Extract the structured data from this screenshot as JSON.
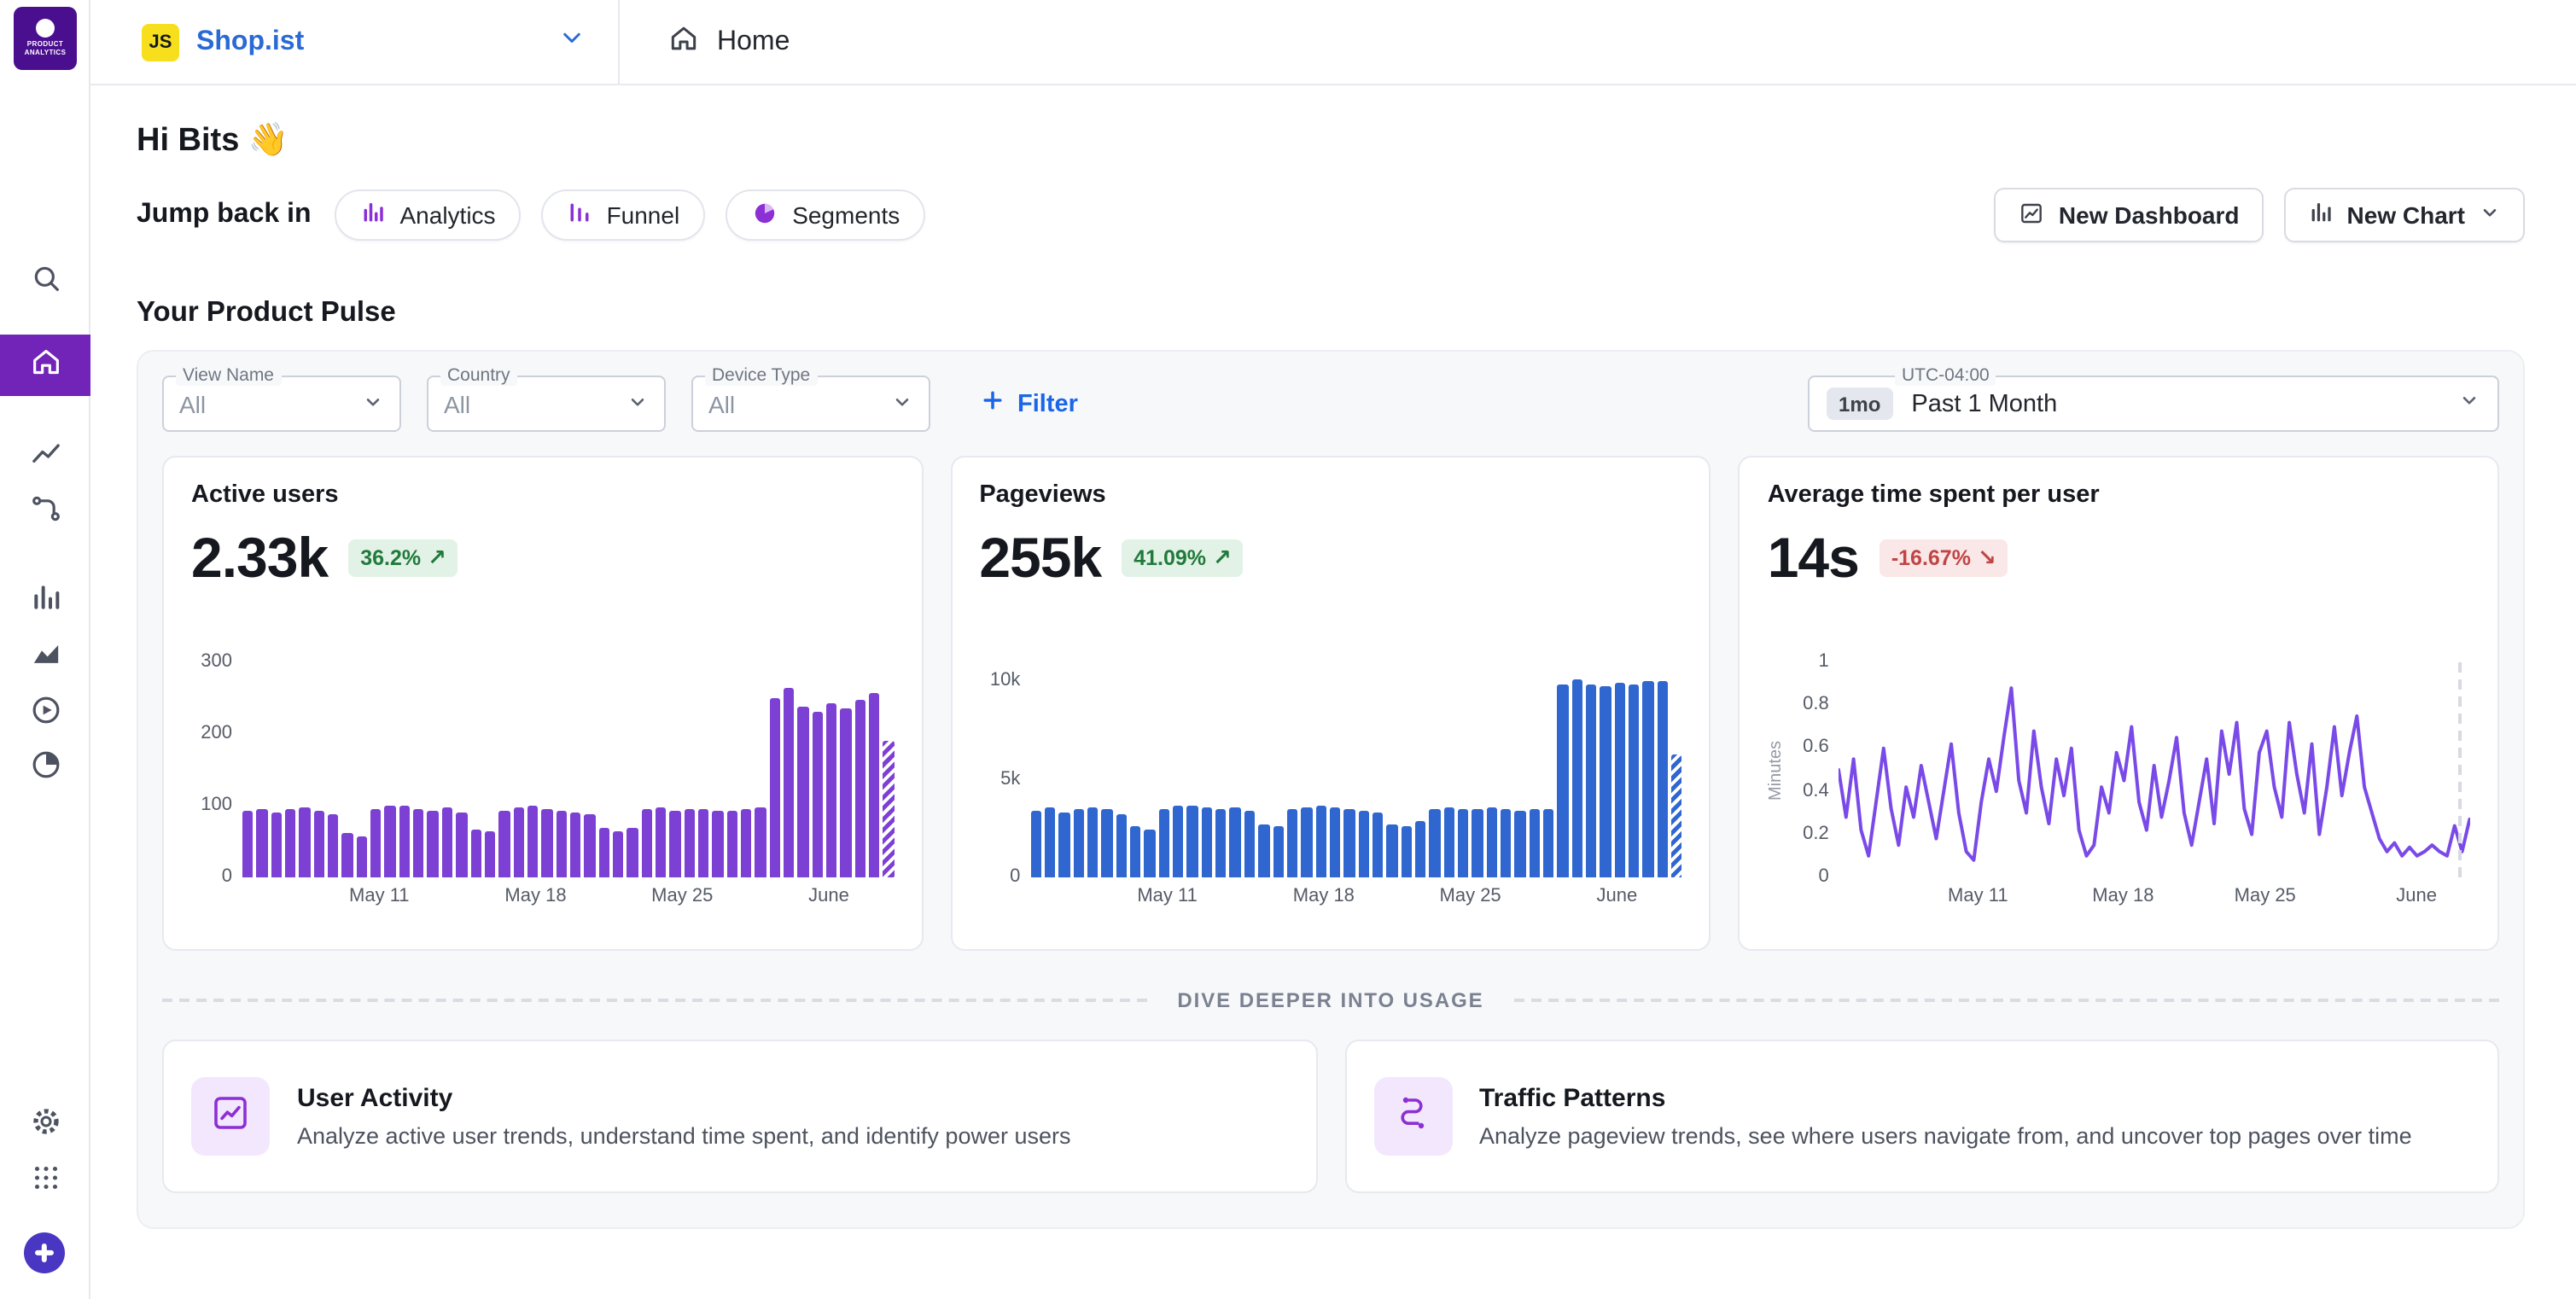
{
  "topbar": {
    "workspace_badge": "JS",
    "workspace_name": "Shop.ist",
    "home_label": "Home"
  },
  "header": {
    "greeting": "Hi Bits 👋",
    "jump_back_label": "Jump back in",
    "chips": [
      {
        "label": "Analytics",
        "icon": "bar-chart-icon"
      },
      {
        "label": "Funnel",
        "icon": "funnel-chart-icon"
      },
      {
        "label": "Segments",
        "icon": "pie-chart-icon"
      }
    ],
    "new_dashboard_label": "New Dashboard",
    "new_chart_label": "New Chart"
  },
  "section": {
    "title": "Your Product Pulse"
  },
  "filters": {
    "selects": [
      {
        "label": "View Name",
        "value": "All"
      },
      {
        "label": "Country",
        "value": "All"
      },
      {
        "label": "Device Type",
        "value": "All"
      }
    ],
    "add_filter_label": "Filter"
  },
  "time_range": {
    "badge": "1mo",
    "utc_label": "UTC-04:00",
    "value": "Past 1 Month"
  },
  "divider_label": "DIVE DEEPER INTO USAGE",
  "deep_cards": [
    {
      "title": "User Activity",
      "desc": "Analyze active user trends, understand time spent, and identify power users",
      "icon": "line-chart-icon"
    },
    {
      "title": "Traffic Patterns",
      "desc": "Analyze pageview trends, see where users navigate from, and uncover top pages over time",
      "icon": "journey-icon"
    }
  ],
  "colors": {
    "sidebar_active_purple": "#7224b8",
    "bar_purple": "#7d40d4",
    "bar_blue": "#2f66d0",
    "line_purple": "#7a4ae8",
    "link_blue": "#1b66e8",
    "positive_green": "#217a3c",
    "negative_red": "#c04545"
  },
  "chart_data": [
    {
      "type": "bar",
      "title": "Active users",
      "metric": "2.33k",
      "delta": "36.2%",
      "arrow": "↗",
      "direction": "up",
      "color": "#7d40d4",
      "xlabel": "",
      "ylabel": "",
      "ylim": [
        0,
        300
      ],
      "yticks": [
        0,
        100,
        200,
        300
      ],
      "ytick_labels": [
        "0",
        "100",
        "200",
        "300"
      ],
      "xticks": [
        "May 11",
        "May 18",
        "May 25",
        "June"
      ],
      "xtick_positions": [
        0.21,
        0.45,
        0.675,
        0.9
      ],
      "values": [
        92,
        96,
        90,
        95,
        97,
        93,
        88,
        62,
        58,
        95,
        99,
        101,
        96,
        93,
        97,
        91,
        66,
        64,
        93,
        97,
        100,
        96,
        94,
        91,
        89,
        68,
        64,
        70,
        95,
        97,
        93,
        95,
        96,
        94,
        92,
        95,
        97,
        250,
        265,
        237,
        230,
        242,
        235,
        248,
        256,
        190
      ]
    },
    {
      "type": "bar",
      "title": "Pageviews",
      "metric": "255k",
      "delta": "41.09%",
      "arrow": "↗",
      "direction": "up",
      "color": "#2f66d0",
      "xlabel": "",
      "ylabel": "",
      "ylim": [
        0,
        11000
      ],
      "yticks": [
        0,
        5000,
        10000
      ],
      "ytick_labels": [
        "0",
        "5k",
        "10k"
      ],
      "xticks": [
        "May 11",
        "May 18",
        "May 25",
        "June"
      ],
      "xtick_positions": [
        0.21,
        0.45,
        0.675,
        0.9
      ],
      "values": [
        3400,
        3550,
        3300,
        3500,
        3600,
        3450,
        3250,
        2600,
        2450,
        3500,
        3650,
        3700,
        3550,
        3450,
        3600,
        3380,
        2700,
        2650,
        3450,
        3600,
        3700,
        3550,
        3480,
        3380,
        3300,
        2750,
        2600,
        2850,
        3500,
        3580,
        3450,
        3520,
        3560,
        3480,
        3400,
        3500,
        3520,
        9900,
        10100,
        9850,
        9800,
        9950,
        9870,
        10000,
        10050,
        6300
      ]
    },
    {
      "type": "line",
      "title": "Average time spent per user",
      "metric": "14s",
      "delta": "-16.67%",
      "arrow": "↘",
      "direction": "down",
      "color": "#7a4ae8",
      "xlabel": "",
      "ylabel": "Minutes",
      "ylim": [
        0,
        1
      ],
      "yticks": [
        0,
        0.2,
        0.4,
        0.6,
        0.8,
        1
      ],
      "ytick_labels": [
        "0",
        "0.2",
        "0.4",
        "0.6",
        "0.8",
        "1"
      ],
      "xticks": [
        "May 11",
        "May 18",
        "May 25",
        "June"
      ],
      "xtick_positions": [
        0.22,
        0.45,
        0.675,
        0.915
      ],
      "values": [
        0.5,
        0.28,
        0.55,
        0.22,
        0.1,
        0.35,
        0.6,
        0.32,
        0.15,
        0.42,
        0.28,
        0.52,
        0.35,
        0.18,
        0.4,
        0.62,
        0.3,
        0.12,
        0.08,
        0.35,
        0.55,
        0.4,
        0.65,
        0.88,
        0.45,
        0.3,
        0.68,
        0.42,
        0.25,
        0.55,
        0.38,
        0.6,
        0.22,
        0.1,
        0.15,
        0.42,
        0.3,
        0.58,
        0.45,
        0.7,
        0.35,
        0.22,
        0.52,
        0.28,
        0.45,
        0.65,
        0.3,
        0.15,
        0.35,
        0.55,
        0.25,
        0.68,
        0.48,
        0.72,
        0.32,
        0.2,
        0.58,
        0.68,
        0.42,
        0.28,
        0.72,
        0.48,
        0.3,
        0.62,
        0.2,
        0.42,
        0.7,
        0.38,
        0.58,
        0.75,
        0.42,
        0.3,
        0.18,
        0.12,
        0.16,
        0.1,
        0.14,
        0.1,
        0.12,
        0.15,
        0.12,
        0.1,
        0.24,
        0.12,
        0.27
      ]
    }
  ]
}
